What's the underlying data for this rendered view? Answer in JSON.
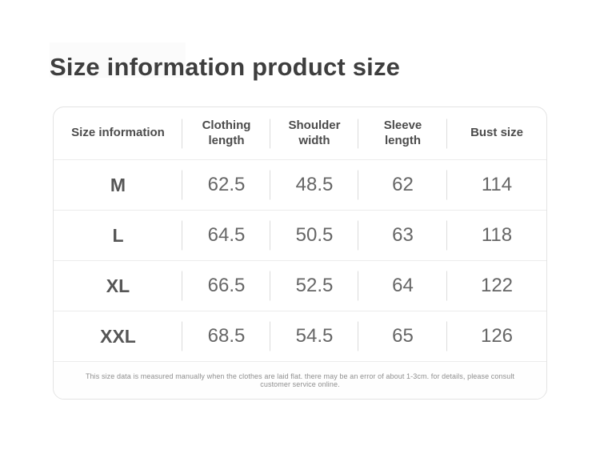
{
  "page": {
    "title": "Size information product size"
  },
  "table": {
    "columns": [
      "Size information",
      "Clothing length",
      "Shoulder width",
      "Sleeve length",
      "Bust size"
    ],
    "rows": [
      {
        "size": "M",
        "values": [
          "62.5",
          "48.5",
          "62",
          "114"
        ]
      },
      {
        "size": "L",
        "values": [
          "64.5",
          "50.5",
          "63",
          "118"
        ]
      },
      {
        "size": "XL",
        "values": [
          "66.5",
          "52.5",
          "64",
          "122"
        ]
      },
      {
        "size": "XXL",
        "values": [
          "68.5",
          "54.5",
          "65",
          "126"
        ]
      }
    ],
    "note": "This size data is measured manually when the clothes are laid flat. there may be an error of about 1-3cm. for details, please consult customer service online."
  },
  "colors": {
    "title_text": "#3e3e3e",
    "header_text": "#4c4c4c",
    "value_text": "#666666",
    "card_border": "#e3e3e3",
    "row_divider": "#ececec",
    "column_divider": "#dcdcdc",
    "note_text": "#8f8f8f"
  }
}
